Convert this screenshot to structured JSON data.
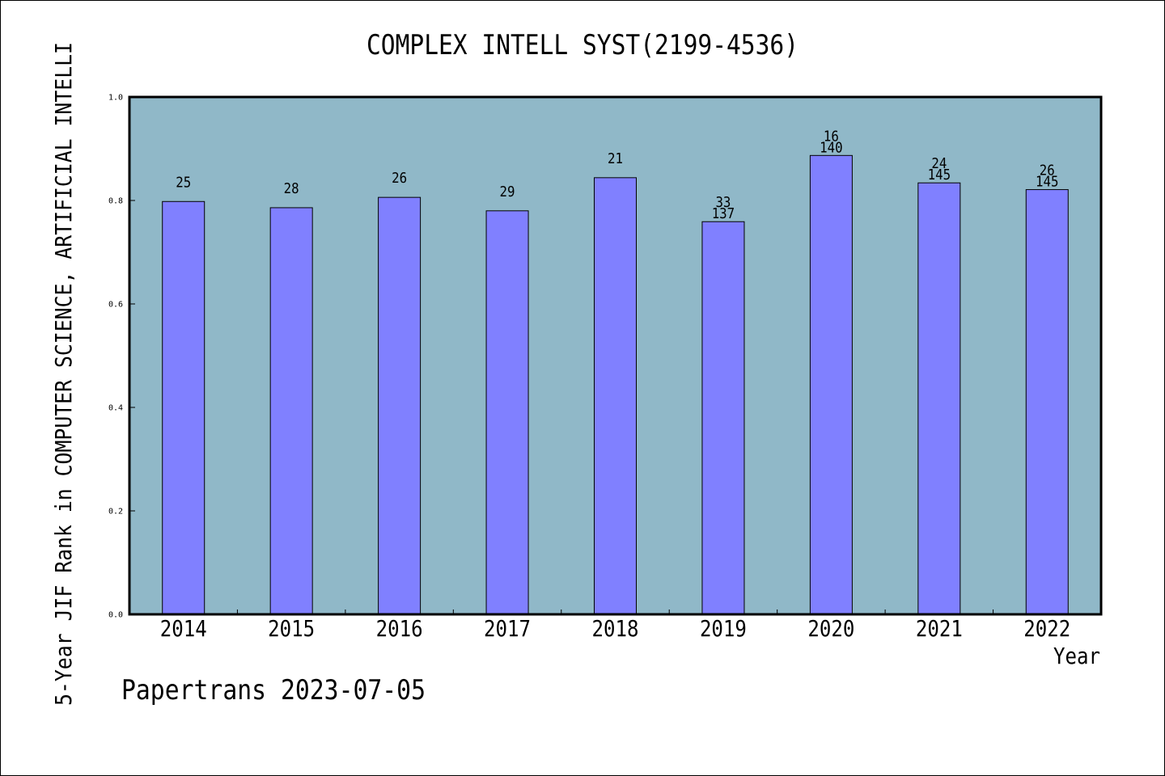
{
  "chart_data": {
    "type": "bar",
    "title": "COMPLEX INTELL SYST(2199-4536)",
    "xlabel": "Year",
    "ylabel": "5-Year JIF Rank in COMPUTER SCIENCE, ARTIFICIAL INTELLI",
    "categories": [
      "2014",
      "2015",
      "2016",
      "2017",
      "2018",
      "2019",
      "2020",
      "2021",
      "2022"
    ],
    "values": [
      0.798,
      0.786,
      0.806,
      0.78,
      0.844,
      0.759,
      0.887,
      0.834,
      0.821
    ],
    "rank_labels": [
      "25",
      "28",
      "26",
      "29",
      "21",
      "33",
      "16",
      "24",
      "26"
    ],
    "total_labels": [
      null,
      null,
      null,
      null,
      null,
      "137",
      "140",
      "145",
      "145"
    ],
    "ylim": [
      0,
      1.0
    ],
    "ytick_labels": [
      "0.0",
      "0.2",
      "0.4",
      "0.6",
      "0.8",
      "1.0"
    ],
    "grid": false
  },
  "footer": "Papertrans 2023-07-05",
  "colors": {
    "plot_background": "#90B8C8",
    "bar_fill": "#8080FF",
    "bar_stroke": "#000000",
    "axis": "#000000"
  }
}
